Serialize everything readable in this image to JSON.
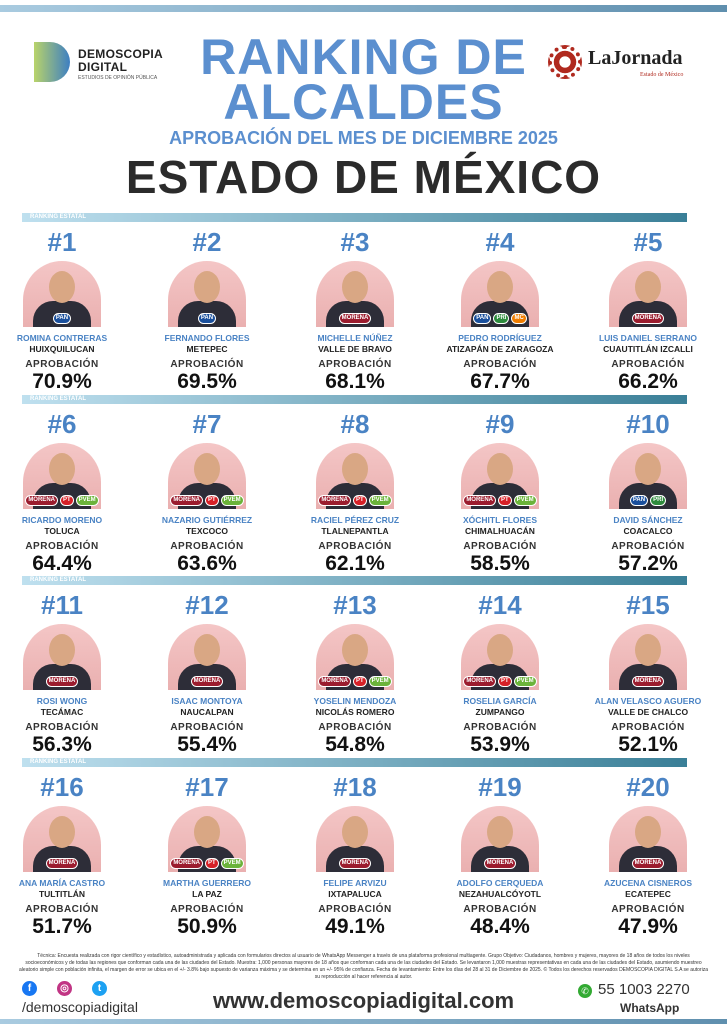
{
  "header": {
    "title_line1": "RANKING DE",
    "title_line2": "ALCALDES",
    "subtitle": "APROBACIÓN DEL MES DE DICIEMBRE 2025",
    "state": "ESTADO DE MÉXICO"
  },
  "logos": {
    "demoscopia_line1": "DEMOSCOPIA",
    "demoscopia_line2": "DIGITAL",
    "demoscopia_tagline": "ESTUDIOS DE OPINIÓN PÚBLICA",
    "jornada_name": "LaJornada",
    "jornada_sub": "Estado de México"
  },
  "section_label": "RANKING ESTATAL",
  "approval_label": "APROBACIÓN",
  "party_colors": {
    "PAN": "#1a4f9c",
    "PRI": "#2e8b3d",
    "MORENA": "#9b1c2e",
    "PT": "#d62027",
    "PVEM": "#6bb33a",
    "MC": "#f07d00"
  },
  "mayors": [
    {
      "rank": "#1",
      "name": "ROMINA CONTRERAS",
      "municipality": "HUIXQUILUCAN",
      "approval": "70.9%",
      "parties": [
        "PAN"
      ]
    },
    {
      "rank": "#2",
      "name": "FERNANDO FLORES",
      "municipality": "METEPEC",
      "approval": "69.5%",
      "parties": [
        "PAN"
      ]
    },
    {
      "rank": "#3",
      "name": "MICHELLE NÚÑEZ",
      "municipality": "VALLE DE BRAVO",
      "approval": "68.1%",
      "parties": [
        "MORENA"
      ]
    },
    {
      "rank": "#4",
      "name": "PEDRO RODRÍGUEZ",
      "municipality": "ATIZAPÁN DE ZARAGOZA",
      "approval": "67.7%",
      "parties": [
        "PAN",
        "PRI",
        "MC"
      ]
    },
    {
      "rank": "#5",
      "name": "LUIS DANIEL SERRANO",
      "municipality": "CUAUTITLÁN IZCALLI",
      "approval": "66.2%",
      "parties": [
        "MORENA"
      ]
    },
    {
      "rank": "#6",
      "name": "RICARDO MORENO",
      "municipality": "TOLUCA",
      "approval": "64.4%",
      "parties": [
        "MORENA",
        "PT",
        "PVEM"
      ]
    },
    {
      "rank": "#7",
      "name": "NAZARIO GUTIÉRREZ",
      "municipality": "TEXCOCO",
      "approval": "63.6%",
      "parties": [
        "MORENA",
        "PT",
        "PVEM"
      ]
    },
    {
      "rank": "#8",
      "name": "RACIEL PÉREZ CRUZ",
      "municipality": "TLALNEPANTLA",
      "approval": "62.1%",
      "parties": [
        "MORENA",
        "PT",
        "PVEM"
      ]
    },
    {
      "rank": "#9",
      "name": "XÓCHITL FLORES",
      "municipality": "CHIMALHUACÁN",
      "approval": "58.5%",
      "parties": [
        "MORENA",
        "PT",
        "PVEM"
      ]
    },
    {
      "rank": "#10",
      "name": "DAVID SÁNCHEZ",
      "municipality": "COACALCO",
      "approval": "57.2%",
      "parties": [
        "PAN",
        "PRI"
      ]
    },
    {
      "rank": "#11",
      "name": "ROSI WONG",
      "municipality": "TECÁMAC",
      "approval": "56.3%",
      "parties": [
        "MORENA"
      ]
    },
    {
      "rank": "#12",
      "name": "ISAAC MONTOYA",
      "municipality": "NAUCALPAN",
      "approval": "55.4%",
      "parties": [
        "MORENA"
      ]
    },
    {
      "rank": "#13",
      "name": "YOSELIN MENDOZA",
      "municipality": "NICOLÁS ROMERO",
      "approval": "54.8%",
      "parties": [
        "MORENA",
        "PT",
        "PVEM"
      ]
    },
    {
      "rank": "#14",
      "name": "ROSELIA GARCÍA",
      "municipality": "ZUMPANGO",
      "approval": "53.9%",
      "parties": [
        "MORENA",
        "PT",
        "PVEM"
      ]
    },
    {
      "rank": "#15",
      "name": "ALAN VELASCO AGUERO",
      "municipality": "VALLE DE CHALCO",
      "approval": "52.1%",
      "parties": [
        "MORENA"
      ]
    },
    {
      "rank": "#16",
      "name": "ANA MARÍA CASTRO",
      "municipality": "TULTITLÁN",
      "approval": "51.7%",
      "parties": [
        "MORENA"
      ]
    },
    {
      "rank": "#17",
      "name": "MARTHA GUERRERO",
      "municipality": "LA PAZ",
      "approval": "50.9%",
      "parties": [
        "MORENA",
        "PT",
        "PVEM"
      ]
    },
    {
      "rank": "#18",
      "name": "FELIPE ARVIZU",
      "municipality": "IXTAPALUCA",
      "approval": "49.1%",
      "parties": [
        "MORENA"
      ]
    },
    {
      "rank": "#19",
      "name": "ADOLFO CERQUEDA",
      "municipality": "NEZAHUALCÓYOTL",
      "approval": "48.4%",
      "parties": [
        "MORENA"
      ]
    },
    {
      "rank": "#20",
      "name": "AZUCENA CISNEROS",
      "municipality": "ECATEPEC",
      "approval": "47.9%",
      "parties": [
        "MORENA"
      ]
    }
  ],
  "footer": {
    "methodology": "Técnica: Encuesta realizada con rigor científico y estadístico, autoadministrada y aplicada con formularios directos al usuario de WhatsApp Messenger a través de una plataforma profesional multiagente. Grupo Objetivo: Ciudadanos, hombres y mujeres, mayores de 18 años de todos los niveles socioeconómicos y de todas las regiones que conforman cada una de las ciudades del Estado. Muestra: 1,000 personas mayores de 18 años que conforman cada una de las ciudades del Estado. Se levantaron 1,000 muestras representativas en cada una de las ciudades del Estado, asumiendo muestreo aleatorio simple con población infinita, el margen de error se ubica en el +/- 3.8% bajo supuesto de varianza máxima y se determina en un +/- 95% de confianza. Fecha de levantamiento: Entre los días del 28 al 31 de Diciembre de 2025. © Todos los derechos reservados DEMOSCOPIA DIGITAL S.A se autoriza su reproducción al hacer referencia al autor.",
    "handle": "/demoscopiadigital",
    "website": "www.demoscopiadigital.com",
    "phone": "55 1003 2270",
    "whatsapp": "WhatsApp"
  }
}
